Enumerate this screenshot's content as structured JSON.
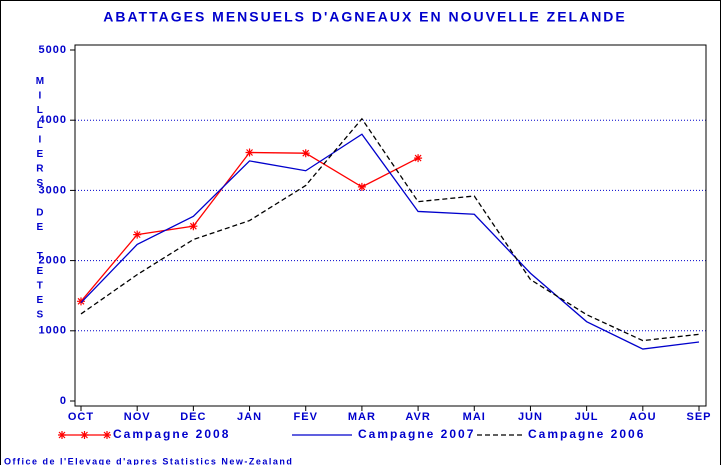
{
  "chart_data": {
    "type": "line",
    "title": "ABATTAGES MENSUELS D'AGNEAUX EN NOUVELLE ZELANDE",
    "y_label": "MILLIERS DE TETES",
    "source": "Office de l'Elevage d'apres Statistics New-Zealand",
    "categories": [
      "OCT",
      "NOV",
      "DEC",
      "JAN",
      "FEV",
      "MAR",
      "AVR",
      "MAI",
      "JUN",
      "JUL",
      "AOU",
      "SEP"
    ],
    "series": [
      {
        "name": "Campagne 2008",
        "color": "#ff0000",
        "marker": "asterisk",
        "dash": false,
        "values": [
          1420,
          2370,
          2490,
          3540,
          3530,
          3050,
          3460,
          null,
          null,
          null,
          null,
          null
        ]
      },
      {
        "name": "Campagne 2007",
        "color": "#0000cc",
        "marker": "none",
        "dash": false,
        "values": [
          1400,
          2230,
          2630,
          3420,
          3280,
          3800,
          2700,
          2660,
          1820,
          1130,
          740,
          840
        ]
      },
      {
        "name": "Campagne 2006",
        "color": "#000000",
        "marker": "none",
        "dash": true,
        "values": [
          1240,
          1800,
          2300,
          2570,
          3070,
          4020,
          2840,
          2920,
          1730,
          1230,
          860,
          950
        ]
      }
    ],
    "ylim": [
      0,
      5000
    ],
    "yticks": [
      0,
      1000,
      2000,
      3000,
      4000,
      5000
    ],
    "grid": true
  }
}
